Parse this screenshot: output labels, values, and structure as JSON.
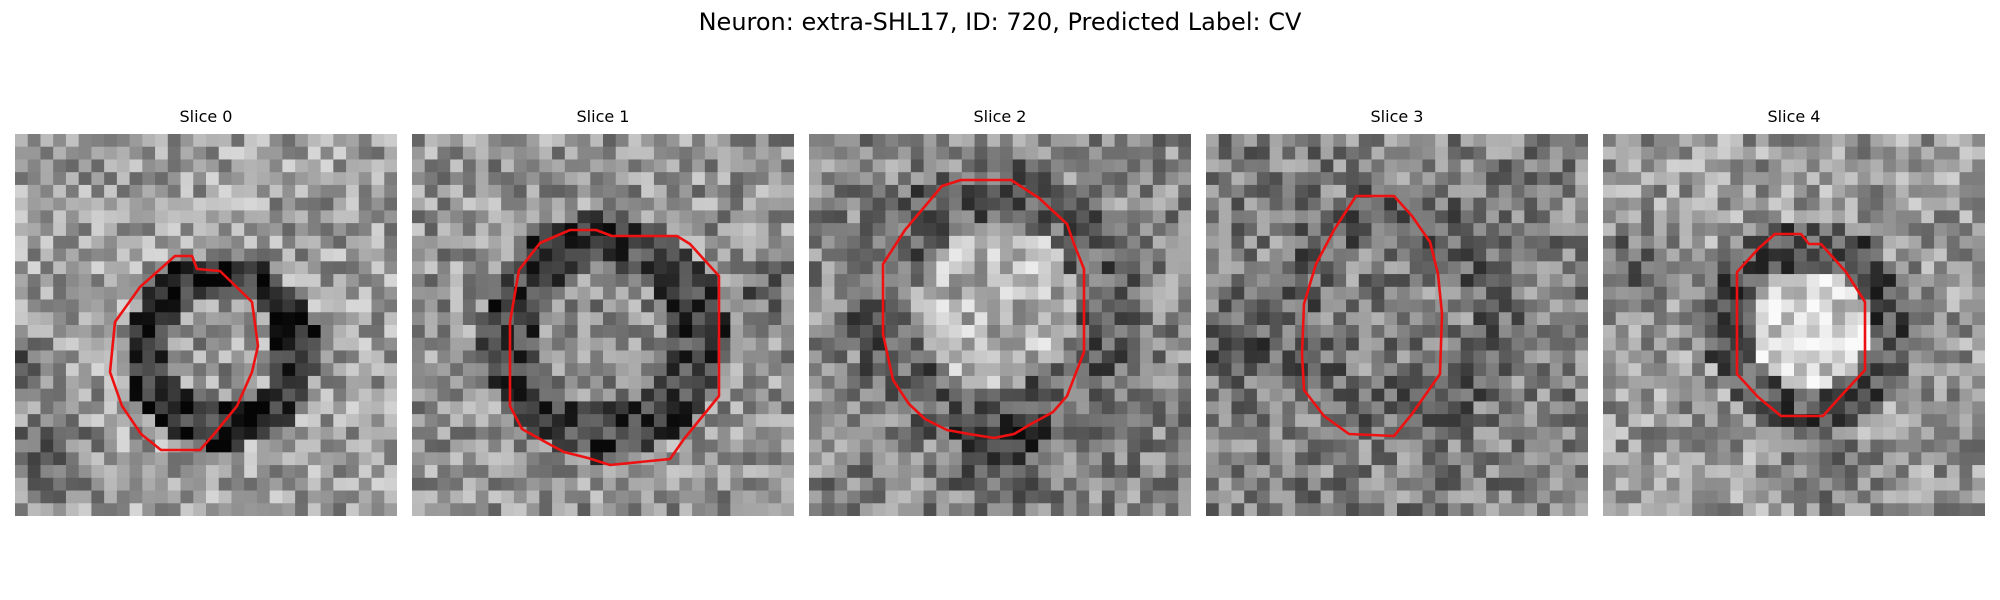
{
  "figure": {
    "title": "Neuron: extra-SHL17, ID: 720, Predicted Label: CV"
  },
  "panels": [
    {
      "title": "Slice 0",
      "image": "noisy-grayscale-microscopy-slice-dark-ring-bright-center",
      "overlay": "red-roi-contour"
    },
    {
      "title": "Slice 1",
      "image": "noisy-grayscale-microscopy-slice-dark-ring",
      "overlay": "red-roi-contour"
    },
    {
      "title": "Slice 2",
      "image": "noisy-grayscale-microscopy-slice-bright-cell-body",
      "overlay": "red-roi-contour"
    },
    {
      "title": "Slice 3",
      "image": "noisy-grayscale-microscopy-slice-mottled-cell",
      "overlay": "red-roi-contour"
    },
    {
      "title": "Slice 4",
      "image": "noisy-grayscale-microscopy-slice-bright-core",
      "overlay": "red-roi-contour"
    }
  ],
  "colors": {
    "contour": "#ee1111",
    "background": "#ffffff"
  }
}
